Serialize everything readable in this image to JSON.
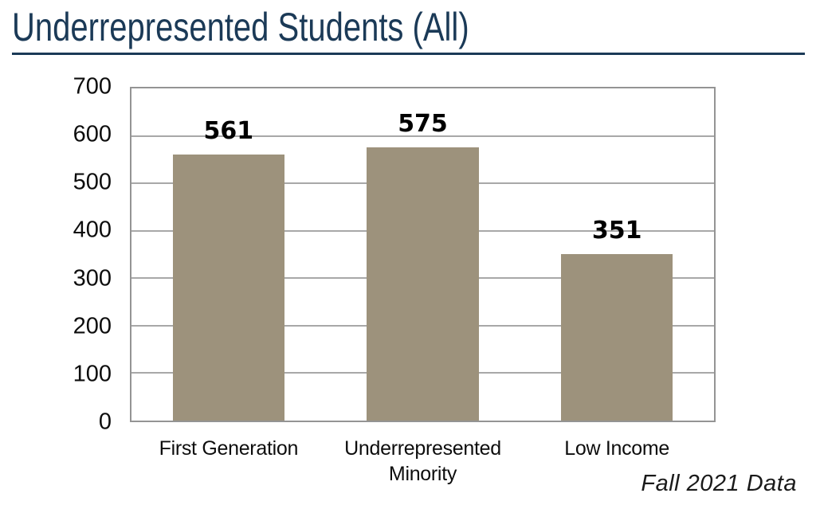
{
  "page": {
    "title": "Underrepresented Students (All)",
    "caption": "Fall 2021 Data"
  },
  "chart_data": {
    "type": "bar",
    "title": "Underrepresented Students (All)",
    "categories": [
      "First Generation",
      "Underrepresented Minority",
      "Low Income"
    ],
    "values": [
      561,
      575,
      351
    ],
    "data_labels": [
      561,
      575,
      351
    ],
    "xlabel": "",
    "ylabel": "",
    "ylim": [
      0,
      700
    ],
    "yticks": [
      0,
      100,
      200,
      300,
      400,
      500,
      600,
      700
    ],
    "grid": true,
    "legend": false,
    "bar_color": "#9d927c",
    "annotation": "Fall 2021 Data",
    "annotation_style": "italic-bottom-right"
  },
  "colors": {
    "accent_navy": "#1b3a57",
    "bar_tan": "#9d927c",
    "gridline_gray": "#a8a8a8",
    "border_gray": "#949494",
    "text_black": "#0d0d0d"
  }
}
